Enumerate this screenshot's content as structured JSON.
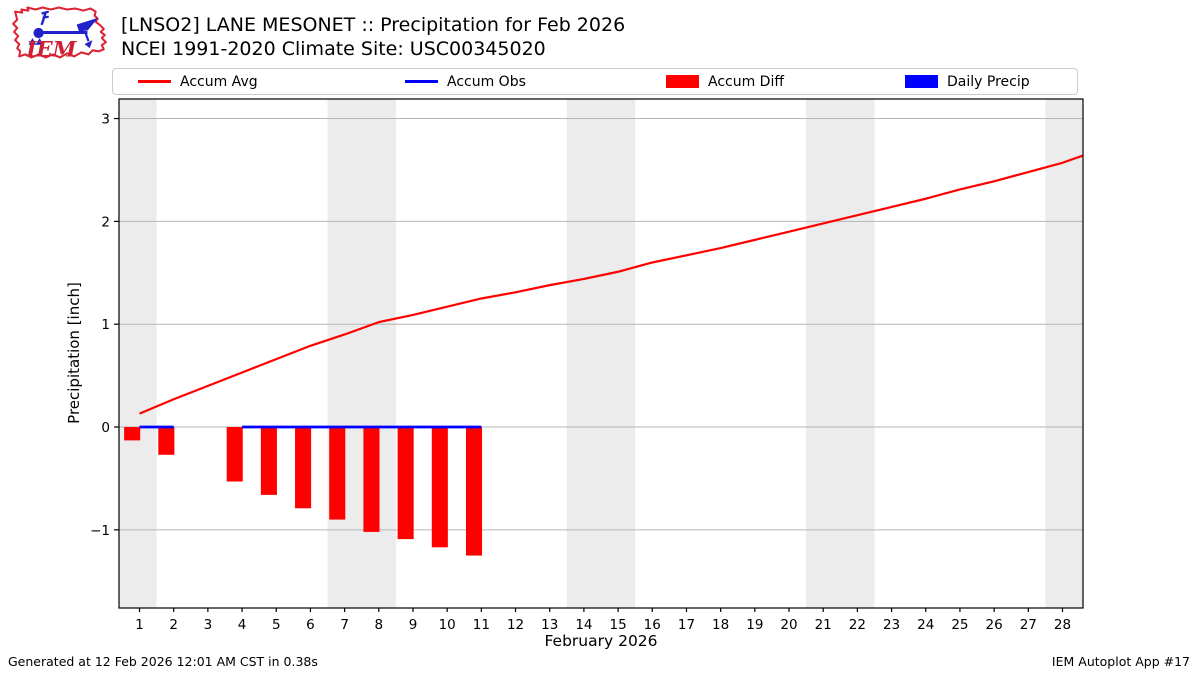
{
  "header": {
    "title_line1": "[LNSO2] LANE MESONET :: Precipitation for Feb 2026",
    "title_line2": "NCEI 1991-2020 Climate Site: USC00345020",
    "logo_text": "IEM"
  },
  "legend": {
    "items": [
      {
        "label": "Accum Avg",
        "swatch": "line",
        "color": "#ff0000"
      },
      {
        "label": "Accum Obs",
        "swatch": "line",
        "color": "#0000ff"
      },
      {
        "label": "Accum Diff",
        "swatch": "rect",
        "color": "#ff0000"
      },
      {
        "label": "Daily Precip",
        "swatch": "rect",
        "color": "#0000ff"
      }
    ]
  },
  "chart_data": {
    "type": "line+bar",
    "xlabel": "February 2026",
    "ylabel": "Precipitation [inch]",
    "xlim": [
      0.4,
      28.6
    ],
    "ylim": [
      -1.76,
      3.19
    ],
    "x_ticks": [
      1,
      2,
      3,
      4,
      5,
      6,
      7,
      8,
      9,
      10,
      11,
      12,
      13,
      14,
      15,
      16,
      17,
      18,
      19,
      20,
      21,
      22,
      23,
      24,
      25,
      26,
      27,
      28
    ],
    "y_ticks": [
      -1,
      0,
      1,
      2,
      3
    ],
    "grid": true,
    "grid_color": "#b6b6b6",
    "band_color": "#ececec",
    "axis_color": "#000000",
    "weekend_bands": [
      [
        0.4,
        1.5
      ],
      [
        6.5,
        8.5
      ],
      [
        13.5,
        15.5
      ],
      [
        20.5,
        22.5
      ],
      [
        27.5,
        28.6
      ]
    ],
    "series": [
      {
        "name": "Accum Avg",
        "type": "line",
        "color": "#ff0000",
        "x": [
          1,
          2,
          3,
          4,
          5,
          6,
          7,
          8,
          9,
          10,
          11,
          12,
          13,
          14,
          15,
          16,
          17,
          18,
          19,
          20,
          21,
          22,
          23,
          24,
          25,
          26,
          27,
          28,
          28.6
        ],
        "y": [
          0.13,
          0.27,
          0.4,
          0.53,
          0.66,
          0.79,
          0.9,
          1.02,
          1.09,
          1.17,
          1.25,
          1.31,
          1.38,
          1.44,
          1.51,
          1.6,
          1.67,
          1.74,
          1.82,
          1.9,
          1.98,
          2.06,
          2.14,
          2.22,
          2.31,
          2.39,
          2.48,
          2.57,
          2.64
        ]
      },
      {
        "name": "Accum Obs",
        "type": "line",
        "color": "#0000ff",
        "segments": [
          {
            "x": [
              1,
              2
            ],
            "y": [
              0,
              0
            ]
          },
          {
            "x": [
              4,
              11
            ],
            "y": [
              0,
              0
            ]
          }
        ]
      },
      {
        "name": "Accum Diff",
        "type": "bar",
        "color": "#ff0000",
        "x": [
          1,
          2,
          4,
          5,
          6,
          7,
          8,
          9,
          10,
          11
        ],
        "y": [
          -0.13,
          -0.27,
          -0.53,
          -0.66,
          -0.79,
          -0.9,
          -1.02,
          -1.09,
          -1.17,
          -1.25
        ]
      },
      {
        "name": "Daily Precip",
        "type": "bar",
        "color": "#0000ff",
        "x": [],
        "y": []
      }
    ]
  },
  "footer": {
    "generated": "Generated at 12 Feb 2026 12:01 AM CST in 0.38s",
    "credit": "IEM Autoplot App #17"
  }
}
